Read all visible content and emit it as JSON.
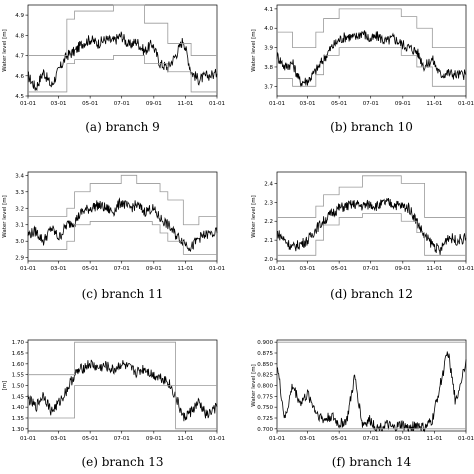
{
  "chart_data": [
    {
      "type": "line",
      "caption": "(a) branch 9",
      "ylabel": "Water level [m]",
      "xticks": [
        "01-01",
        "03-01",
        "05-01",
        "07-01",
        "09-01",
        "11-01",
        "01-01"
      ],
      "yticks": [
        "4.5",
        "4.6",
        "4.7",
        "4.8",
        "4.9"
      ],
      "ylim": [
        4.5,
        4.95
      ],
      "x": [
        0,
        15,
        30,
        45,
        60,
        75,
        90,
        105,
        120,
        135,
        150,
        165,
        180,
        195,
        210,
        225,
        240,
        255,
        270,
        285,
        300,
        315,
        330,
        345,
        365
      ],
      "series": [
        {
          "role": "water level",
          "values": [
            4.6,
            4.54,
            4.62,
            4.55,
            4.63,
            4.7,
            4.72,
            4.76,
            4.78,
            4.76,
            4.78,
            4.77,
            4.8,
            4.75,
            4.77,
            4.72,
            4.76,
            4.66,
            4.64,
            4.7,
            4.78,
            4.62,
            4.58,
            4.6,
            4.61
          ]
        },
        {
          "role": "upper bound",
          "values": [
            4.7,
            4.7,
            4.7,
            4.7,
            4.7,
            4.88,
            4.92,
            4.92,
            4.92,
            4.92,
            4.92,
            4.95,
            4.95,
            4.95,
            4.95,
            4.86,
            4.86,
            4.86,
            4.76,
            4.76,
            4.76,
            4.7,
            4.7,
            4.7,
            4.7
          ]
        },
        {
          "role": "lower bound",
          "values": [
            4.52,
            4.52,
            4.52,
            4.52,
            4.52,
            4.66,
            4.68,
            4.68,
            4.68,
            4.68,
            4.68,
            4.7,
            4.7,
            4.7,
            4.7,
            4.66,
            4.66,
            4.66,
            4.62,
            4.62,
            4.62,
            4.52,
            4.52,
            4.52,
            4.52
          ]
        }
      ]
    },
    {
      "type": "line",
      "caption": "(b) branch 10",
      "ylabel": "Water level [m]",
      "xticks": [
        "01-01",
        "03-01",
        "05-01",
        "07-01",
        "09-01",
        "11-01",
        "01-01"
      ],
      "yticks": [
        "3.7",
        "3.8",
        "3.9",
        "4.0",
        "4.1"
      ],
      "ylim": [
        3.65,
        4.12
      ],
      "x": [
        0,
        15,
        30,
        45,
        60,
        75,
        90,
        105,
        120,
        135,
        150,
        165,
        180,
        195,
        210,
        225,
        240,
        255,
        270,
        285,
        300,
        315,
        330,
        345,
        365
      ],
      "series": [
        {
          "role": "water level",
          "values": [
            3.86,
            3.8,
            3.82,
            3.72,
            3.73,
            3.78,
            3.84,
            3.9,
            3.94,
            3.96,
            3.95,
            3.98,
            3.94,
            3.96,
            3.93,
            3.95,
            3.92,
            3.9,
            3.88,
            3.8,
            3.84,
            3.76,
            3.77,
            3.76,
            3.76
          ]
        },
        {
          "role": "upper bound",
          "values": [
            3.98,
            3.98,
            3.9,
            3.9,
            3.9,
            3.98,
            4.05,
            4.05,
            4.1,
            4.1,
            4.1,
            4.1,
            4.1,
            4.1,
            4.1,
            4.1,
            4.06,
            4.06,
            4.0,
            4.0,
            3.9,
            3.9,
            3.9,
            3.9,
            3.9
          ]
        },
        {
          "role": "lower bound",
          "values": [
            3.74,
            3.74,
            3.7,
            3.7,
            3.7,
            3.76,
            3.86,
            3.86,
            3.9,
            3.9,
            3.9,
            3.9,
            3.9,
            3.9,
            3.9,
            3.9,
            3.86,
            3.86,
            3.8,
            3.8,
            3.7,
            3.7,
            3.7,
            3.7,
            3.7
          ]
        }
      ]
    },
    {
      "type": "line",
      "caption": "(c) branch 11",
      "ylabel": "Water level [m]",
      "xticks": [
        "01-01",
        "03-01",
        "05-01",
        "07-01",
        "09-01",
        "11-01",
        "01-01"
      ],
      "yticks": [
        "2.9",
        "3.0",
        "3.1",
        "3.2",
        "3.3",
        "3.4"
      ],
      "ylim": [
        2.88,
        3.42
      ],
      "x": [
        0,
        15,
        30,
        45,
        60,
        75,
        90,
        105,
        120,
        135,
        150,
        165,
        180,
        195,
        210,
        225,
        240,
        255,
        270,
        285,
        300,
        315,
        330,
        345,
        365
      ],
      "series": [
        {
          "role": "water level",
          "values": [
            3.04,
            3.06,
            3.0,
            3.08,
            3.02,
            3.1,
            3.12,
            3.18,
            3.2,
            3.22,
            3.2,
            3.18,
            3.24,
            3.2,
            3.22,
            3.18,
            3.2,
            3.14,
            3.1,
            3.04,
            3.0,
            2.96,
            3.02,
            3.04,
            3.05
          ]
        },
        {
          "role": "upper bound",
          "values": [
            3.15,
            3.15,
            3.15,
            3.15,
            3.15,
            3.2,
            3.3,
            3.3,
            3.35,
            3.35,
            3.35,
            3.35,
            3.4,
            3.4,
            3.35,
            3.35,
            3.35,
            3.3,
            3.25,
            3.25,
            3.1,
            3.1,
            3.15,
            3.15,
            3.15
          ]
        },
        {
          "role": "lower bound",
          "values": [
            2.95,
            2.95,
            2.95,
            2.95,
            2.95,
            3.0,
            3.1,
            3.1,
            3.12,
            3.12,
            3.12,
            3.12,
            3.12,
            3.12,
            3.12,
            3.12,
            3.1,
            3.05,
            3.0,
            3.0,
            2.92,
            2.92,
            2.92,
            2.92,
            2.92
          ]
        }
      ]
    },
    {
      "type": "line",
      "caption": "(d) branch 12",
      "ylabel": "Water level [m]",
      "xticks": [
        "01-01",
        "03-01",
        "05-01",
        "07-01",
        "09-01",
        "11-01",
        "01-01"
      ],
      "yticks": [
        "2.0",
        "2.1",
        "2.2",
        "2.3",
        "2.4"
      ],
      "ylim": [
        1.99,
        2.46
      ],
      "x": [
        0,
        15,
        30,
        45,
        60,
        75,
        90,
        105,
        120,
        135,
        150,
        165,
        180,
        195,
        210,
        225,
        240,
        255,
        270,
        285,
        300,
        315,
        330,
        345,
        365
      ],
      "series": [
        {
          "role": "water level",
          "values": [
            2.14,
            2.1,
            2.06,
            2.08,
            2.1,
            2.16,
            2.2,
            2.24,
            2.27,
            2.28,
            2.29,
            2.28,
            2.29,
            2.28,
            2.3,
            2.29,
            2.28,
            2.27,
            2.2,
            2.12,
            2.08,
            2.04,
            2.12,
            2.1,
            2.11
          ]
        },
        {
          "role": "upper bound",
          "values": [
            2.22,
            2.22,
            2.22,
            2.22,
            2.22,
            2.28,
            2.34,
            2.34,
            2.38,
            2.38,
            2.38,
            2.44,
            2.44,
            2.44,
            2.44,
            2.44,
            2.4,
            2.4,
            2.4,
            2.22,
            2.22,
            2.22,
            2.22,
            2.22,
            2.22
          ]
        },
        {
          "role": "lower bound",
          "values": [
            2.02,
            2.02,
            2.02,
            2.02,
            2.02,
            2.1,
            2.18,
            2.18,
            2.22,
            2.22,
            2.22,
            2.24,
            2.24,
            2.24,
            2.24,
            2.24,
            2.2,
            2.2,
            2.14,
            2.02,
            2.02,
            2.02,
            2.02,
            2.02,
            2.02
          ]
        }
      ]
    },
    {
      "type": "line",
      "caption": "(e) branch 13",
      "ylabel": "[m]",
      "xticks": [
        "01-01",
        "03-01",
        "05-01",
        "07-01",
        "09-01",
        "11-01",
        "01-01"
      ],
      "yticks": [
        "1.30",
        "1.35",
        "1.40",
        "1.45",
        "1.50",
        "1.55",
        "1.60",
        "1.65",
        "1.70"
      ],
      "ylim": [
        1.29,
        1.71
      ],
      "x": [
        0,
        15,
        30,
        45,
        60,
        75,
        90,
        105,
        120,
        135,
        150,
        165,
        180,
        195,
        210,
        225,
        240,
        255,
        270,
        285,
        300,
        315,
        330,
        345,
        365
      ],
      "series": [
        {
          "role": "water level",
          "values": [
            1.44,
            1.4,
            1.46,
            1.38,
            1.42,
            1.48,
            1.55,
            1.58,
            1.6,
            1.58,
            1.59,
            1.57,
            1.6,
            1.58,
            1.56,
            1.58,
            1.55,
            1.54,
            1.52,
            1.45,
            1.35,
            1.38,
            1.42,
            1.36,
            1.4
          ]
        },
        {
          "role": "upper bound",
          "values": [
            1.55,
            1.55,
            1.55,
            1.55,
            1.55,
            1.55,
            1.7,
            1.7,
            1.7,
            1.7,
            1.7,
            1.7,
            1.7,
            1.7,
            1.7,
            1.7,
            1.7,
            1.7,
            1.7,
            1.5,
            1.5,
            1.5,
            1.5,
            1.5,
            1.5
          ]
        },
        {
          "role": "lower bound",
          "values": [
            1.35,
            1.35,
            1.35,
            1.35,
            1.35,
            1.35,
            1.5,
            1.5,
            1.5,
            1.5,
            1.5,
            1.5,
            1.5,
            1.5,
            1.5,
            1.5,
            1.5,
            1.5,
            1.5,
            1.3,
            1.3,
            1.3,
            1.3,
            1.3,
            1.3
          ]
        }
      ]
    },
    {
      "type": "line",
      "caption": "(f) branch 14",
      "ylabel": "Water level [m]",
      "xticks": [
        "01-01",
        "03-01",
        "05-01",
        "07-01",
        "09-01",
        "11-01",
        "01-01"
      ],
      "yticks": [
        "0.700",
        "0.725",
        "0.750",
        "0.775",
        "0.800",
        "0.825",
        "0.850",
        "0.875",
        "0.900"
      ],
      "ylim": [
        0.695,
        0.905
      ],
      "x": [
        0,
        15,
        30,
        45,
        60,
        75,
        90,
        105,
        120,
        135,
        150,
        165,
        180,
        195,
        210,
        225,
        240,
        255,
        270,
        285,
        300,
        315,
        330,
        345,
        365
      ],
      "series": [
        {
          "role": "water level",
          "values": [
            0.85,
            0.72,
            0.8,
            0.76,
            0.78,
            0.74,
            0.72,
            0.73,
            0.71,
            0.72,
            0.82,
            0.71,
            0.72,
            0.7,
            0.71,
            0.7,
            0.71,
            0.7,
            0.71,
            0.7,
            0.72,
            0.8,
            0.88,
            0.76,
            0.86
          ]
        },
        {
          "role": "upper bound",
          "values": [
            0.9,
            0.9,
            0.9,
            0.9,
            0.9,
            0.9,
            0.9,
            0.9,
            0.9,
            0.9,
            0.9,
            0.9,
            0.9,
            0.9,
            0.9,
            0.9,
            0.9,
            0.9,
            0.9,
            0.9,
            0.9,
            0.9,
            0.9,
            0.9,
            0.9
          ]
        },
        {
          "role": "lower bound",
          "values": [
            0.7,
            0.7,
            0.7,
            0.7,
            0.7,
            0.7,
            0.7,
            0.7,
            0.7,
            0.7,
            0.7,
            0.7,
            0.7,
            0.7,
            0.7,
            0.7,
            0.7,
            0.7,
            0.7,
            0.7,
            0.7,
            0.7,
            0.7,
            0.7,
            0.7
          ]
        }
      ]
    }
  ]
}
